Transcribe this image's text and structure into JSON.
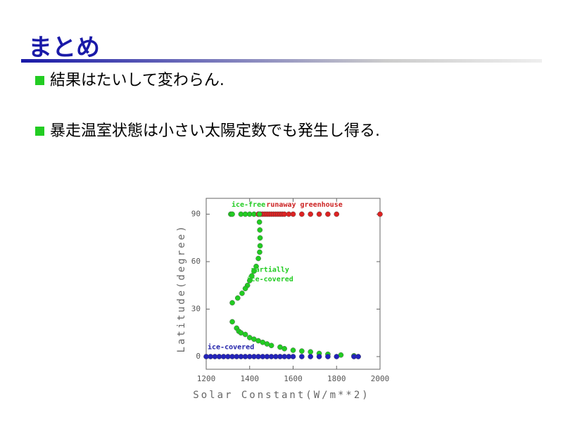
{
  "slide": {
    "title": "まとめ",
    "bullets": [
      "結果はたいして変わらん.",
      "暴走温室状態は小さい太陽定数でも発生し得る."
    ]
  },
  "chart_data": {
    "type": "scatter",
    "xlabel": "Solar Constant(W/m**2)",
    "ylabel": "Latitude(degree)",
    "xlim": [
      1200,
      2000
    ],
    "ylim": [
      -8,
      100
    ],
    "xticks": [
      1200,
      1400,
      1600,
      1800,
      2000
    ],
    "yticks": [
      0,
      30,
      60,
      90
    ],
    "annotations": [
      {
        "text": "ice-free",
        "color": "#22cc22",
        "x": 1310,
        "y": 96
      },
      {
        "text": "runaway greenhouse",
        "color": "#cc2222",
        "x": 1470,
        "y": 96
      },
      {
        "text": "partially",
        "color": "#22cc22",
        "x": 1400,
        "y": 55
      },
      {
        "text": "ice-covered",
        "color": "#22cc22",
        "x": 1380,
        "y": 49
      },
      {
        "text": "ice-covered",
        "color": "#2222aa",
        "x": 1200,
        "y": 6
      }
    ],
    "series": [
      {
        "color": "#22cc22",
        "x": [
          1313,
          1320,
          1360,
          1380,
          1400,
          1420,
          1440
        ],
        "values": [
          90,
          90,
          90,
          90,
          90,
          90,
          90
        ]
      },
      {
        "color": "#dd2222",
        "x": [
          1440,
          1450,
          1460,
          1470,
          1480,
          1490,
          1500,
          1510,
          1520,
          1530,
          1540,
          1550,
          1560,
          1580,
          1600,
          1640,
          1680,
          1720,
          1760,
          1800,
          2000
        ],
        "values": [
          90,
          90,
          90,
          90,
          90,
          90,
          90,
          90,
          90,
          90,
          90,
          90,
          90,
          90,
          90,
          90,
          90,
          90,
          90,
          90,
          90
        ]
      },
      {
        "color": "#22cc22",
        "x": [
          1445,
          1445,
          1447,
          1448,
          1448,
          1446,
          1440,
          1430,
          1420,
          1410,
          1400,
          1390,
          1380,
          1365,
          1345,
          1320,
          1320,
          1340,
          1350,
          1360,
          1380,
          1400,
          1420,
          1440,
          1460,
          1480,
          1500,
          1540,
          1560,
          1600,
          1640,
          1680,
          1720,
          1760,
          1820,
          1880
        ],
        "values": [
          90,
          85,
          80,
          75,
          70,
          66,
          62,
          57,
          54,
          51,
          48,
          45,
          43,
          40,
          37,
          34,
          22,
          18,
          16,
          15,
          14,
          12,
          11,
          10,
          9,
          8,
          7,
          6,
          5,
          4,
          3.5,
          3,
          2,
          1.5,
          1,
          0.5
        ]
      },
      {
        "color": "#2222bb",
        "x": [
          1200,
          1220,
          1240,
          1260,
          1280,
          1300,
          1320,
          1340,
          1360,
          1380,
          1400,
          1420,
          1440,
          1460,
          1480,
          1500,
          1520,
          1540,
          1560,
          1580,
          1600,
          1640,
          1680,
          1720,
          1760,
          1800,
          1880,
          1900
        ],
        "values": [
          0,
          0,
          0,
          0,
          0,
          0,
          0,
          0,
          0,
          0,
          0,
          0,
          0,
          0,
          0,
          0,
          0,
          0,
          0,
          0,
          0,
          0,
          0,
          0,
          0,
          0,
          0,
          0
        ]
      }
    ]
  }
}
